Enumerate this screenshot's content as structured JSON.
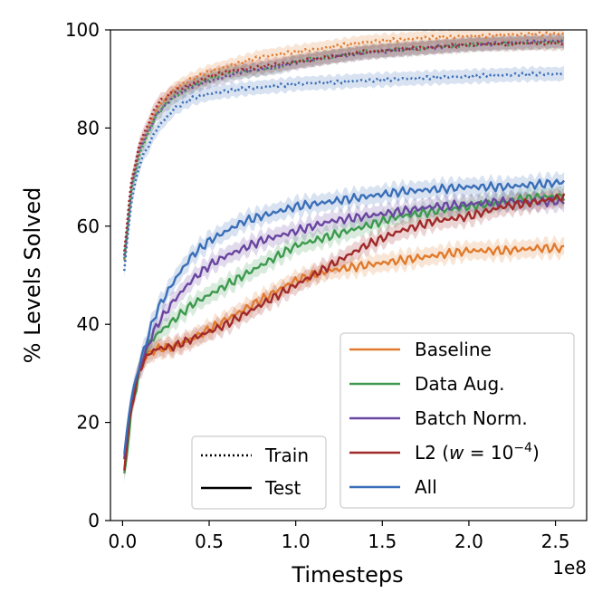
{
  "chart_data": {
    "type": "line",
    "title": "",
    "xlabel": "Timesteps",
    "ylabel": "% Levels Solved",
    "x_offset_label": "1e8",
    "xlim": [
      -0.07,
      2.68
    ],
    "ylim": [
      0,
      100
    ],
    "x_ticks": [
      0.0,
      0.5,
      1.0,
      1.5,
      2.0,
      2.5
    ],
    "x_tick_labels": [
      "0.0",
      "0.5",
      "1.0",
      "1.5",
      "2.0",
      "2.5"
    ],
    "y_ticks": [
      0,
      20,
      40,
      60,
      80,
      100
    ],
    "y_tick_labels": [
      "0",
      "20",
      "40",
      "60",
      "80",
      "100"
    ],
    "grid": false,
    "style_legend": {
      "placement": "lower-left",
      "entries": [
        {
          "label": "Train",
          "style": "dotted"
        },
        {
          "label": "Test",
          "style": "solid"
        }
      ]
    },
    "series_legend": {
      "placement": "lower-right",
      "entries": [
        {
          "label": "Baseline",
          "color": "#e07b2e"
        },
        {
          "label": "Data Aug.",
          "color": "#3d9a4f"
        },
        {
          "label": "Batch Norm.",
          "color": "#6a46a0"
        },
        {
          "label_prefix": "L2 (",
          "label_var": "w",
          "label_eq": " = 10",
          "label_sup": "−4",
          "label_suffix": ")",
          "color": "#a12a2a"
        },
        {
          "label": "All",
          "color": "#3a6fb8"
        }
      ]
    },
    "series": [
      {
        "legend_ref": "Baseline",
        "split": "train",
        "color": "#e07b2e",
        "x": [
          0.01,
          0.05,
          0.1,
          0.2,
          0.3,
          0.4,
          0.5,
          0.6,
          0.7,
          0.8,
          0.9,
          1.0,
          1.2,
          1.4,
          1.6,
          1.8,
          2.0,
          2.2,
          2.4,
          2.55
        ],
        "y": [
          53,
          68,
          76,
          84,
          88,
          90,
          91.5,
          92.5,
          93.5,
          94.5,
          95,
          95.5,
          96.5,
          97.5,
          98,
          98.5,
          98.7,
          99,
          99.2,
          99.2
        ]
      },
      {
        "legend_ref": "Data Aug.",
        "split": "train",
        "color": "#3d9a4f",
        "x": [
          0.01,
          0.05,
          0.1,
          0.2,
          0.3,
          0.4,
          0.5,
          0.6,
          0.7,
          0.8,
          0.9,
          1.0,
          1.2,
          1.4,
          1.6,
          1.8,
          2.0,
          2.2,
          2.4,
          2.55
        ],
        "y": [
          53,
          67,
          75,
          83,
          86.5,
          88.5,
          90,
          91,
          91.5,
          92,
          92.5,
          93.5,
          94.5,
          95.5,
          96,
          96.5,
          97,
          97.2,
          97.4,
          97.5
        ]
      },
      {
        "legend_ref": "Batch Norm.",
        "split": "train",
        "color": "#6a46a0",
        "x": [
          0.01,
          0.05,
          0.1,
          0.2,
          0.3,
          0.4,
          0.5,
          0.6,
          0.7,
          0.8,
          0.9,
          1.0,
          1.2,
          1.4,
          1.6,
          1.8,
          2.0,
          2.2,
          2.4,
          2.55
        ],
        "y": [
          54,
          68,
          76,
          83,
          86.5,
          88.5,
          89.5,
          90.5,
          91.5,
          92,
          92.5,
          93.3,
          94.5,
          95.3,
          96,
          96.5,
          97,
          97.3,
          97.6,
          97.8
        ]
      },
      {
        "legend_ref": "L2",
        "split": "train",
        "color": "#a12a2a",
        "x": [
          0.01,
          0.05,
          0.1,
          0.2,
          0.3,
          0.4,
          0.5,
          0.6,
          0.7,
          0.8,
          0.9,
          1.0,
          1.2,
          1.4,
          1.6,
          1.8,
          2.0,
          2.2,
          2.4,
          2.55
        ],
        "y": [
          55,
          69,
          77,
          85,
          87.5,
          89,
          90.5,
          91.5,
          92,
          92.5,
          93,
          93.5,
          94.5,
          95.5,
          96,
          96.5,
          97,
          97.2,
          97.3,
          97.4
        ]
      },
      {
        "legend_ref": "All",
        "split": "train",
        "color": "#3a6fb8",
        "x": [
          0.01,
          0.05,
          0.1,
          0.2,
          0.3,
          0.4,
          0.5,
          0.6,
          0.7,
          0.8,
          0.9,
          1.0,
          1.2,
          1.4,
          1.6,
          1.8,
          2.0,
          2.2,
          2.4,
          2.55
        ],
        "y": [
          51,
          65,
          73,
          80,
          84,
          86,
          87,
          87.5,
          88,
          88.3,
          88.6,
          89,
          89.3,
          89.7,
          90,
          90.3,
          90.5,
          90.8,
          91,
          91
        ]
      },
      {
        "legend_ref": "Baseline",
        "split": "test",
        "color": "#e07b2e",
        "x": [
          0.01,
          0.05,
          0.1,
          0.15,
          0.2,
          0.3,
          0.4,
          0.5,
          0.6,
          0.7,
          0.8,
          0.9,
          1.0,
          1.1,
          1.2,
          1.4,
          1.6,
          1.8,
          2.0,
          2.2,
          2.4,
          2.55
        ],
        "y": [
          13,
          24,
          32,
          34,
          35,
          35.5,
          37,
          39,
          41,
          43,
          45,
          47,
          49,
          50,
          51,
          52,
          53,
          54,
          55,
          55,
          55.5,
          55.5
        ]
      },
      {
        "legend_ref": "Data Aug.",
        "split": "test",
        "color": "#3d9a4f",
        "x": [
          0.01,
          0.05,
          0.1,
          0.15,
          0.2,
          0.3,
          0.4,
          0.5,
          0.6,
          0.7,
          0.8,
          0.9,
          1.0,
          1.1,
          1.2,
          1.4,
          1.6,
          1.8,
          2.0,
          2.2,
          2.4,
          2.55
        ],
        "y": [
          9,
          22,
          31,
          36,
          38,
          41,
          44,
          46,
          48,
          50,
          52,
          54,
          56,
          57,
          58,
          60,
          62,
          63,
          64,
          65,
          66,
          66
        ]
      },
      {
        "legend_ref": "Batch Norm.",
        "split": "test",
        "color": "#6a46a0",
        "x": [
          0.01,
          0.05,
          0.1,
          0.15,
          0.2,
          0.3,
          0.4,
          0.5,
          0.6,
          0.7,
          0.8,
          0.9,
          1.0,
          1.1,
          1.2,
          1.4,
          1.6,
          1.8,
          2.0,
          2.2,
          2.4,
          2.55
        ],
        "y": [
          12,
          24,
          31,
          36,
          40,
          45,
          49,
          52,
          54,
          55.5,
          57,
          58,
          59,
          60,
          61,
          62,
          63,
          64,
          64.5,
          65,
          65,
          65
        ]
      },
      {
        "legend_ref": "L2",
        "split": "test",
        "color": "#a12a2a",
        "x": [
          0.01,
          0.05,
          0.1,
          0.15,
          0.2,
          0.3,
          0.4,
          0.5,
          0.6,
          0.7,
          0.8,
          0.9,
          1.0,
          1.1,
          1.2,
          1.4,
          1.6,
          1.8,
          2.0,
          2.2,
          2.4,
          2.55
        ],
        "y": [
          11,
          23,
          31,
          34,
          35,
          35.5,
          37,
          38.5,
          40,
          42,
          44,
          46,
          48,
          50,
          52,
          56,
          59,
          61,
          62,
          64,
          65,
          66
        ]
      },
      {
        "legend_ref": "All",
        "split": "test",
        "color": "#3a6fb8",
        "x": [
          0.01,
          0.05,
          0.1,
          0.15,
          0.2,
          0.3,
          0.4,
          0.5,
          0.6,
          0.7,
          0.8,
          0.9,
          1.0,
          1.1,
          1.2,
          1.4,
          1.6,
          1.8,
          2.0,
          2.2,
          2.4,
          2.55
        ],
        "y": [
          14,
          25,
          32,
          38,
          43,
          49,
          54,
          57,
          59,
          61,
          62,
          63,
          64,
          64.5,
          65,
          66,
          67,
          67.5,
          68,
          68,
          68.5,
          69
        ]
      }
    ]
  }
}
